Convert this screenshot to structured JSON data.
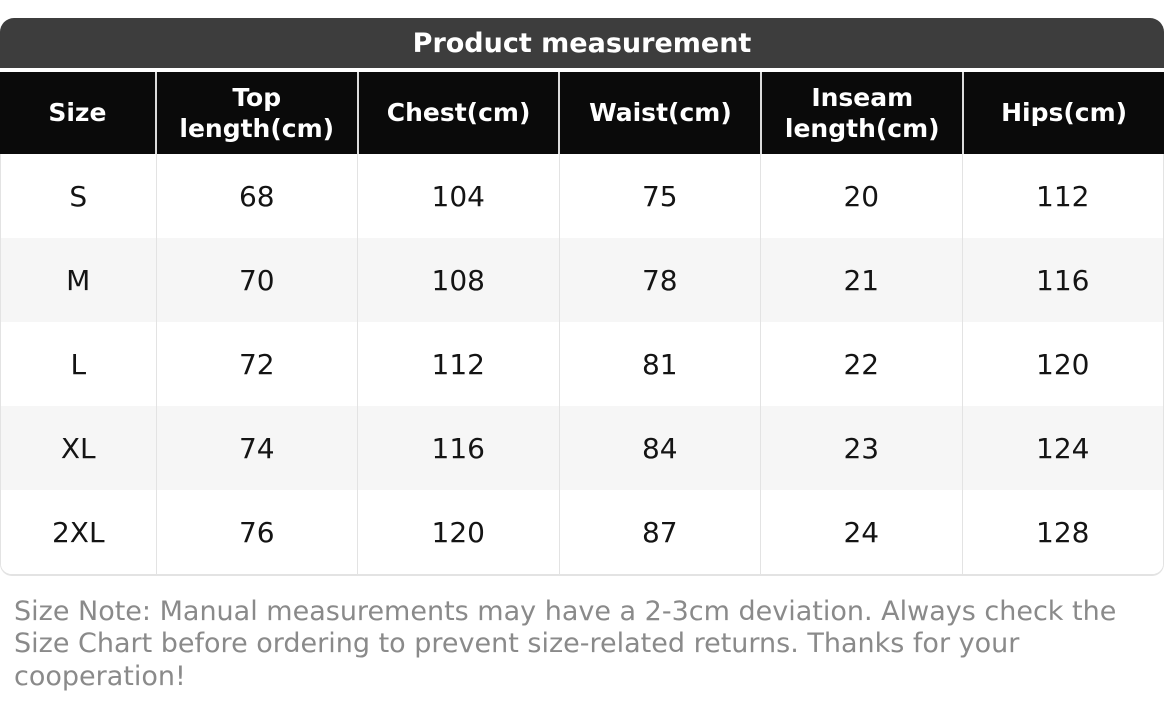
{
  "title_bar": {
    "label": "Product measurement",
    "background": "#3d3d3d",
    "text_color": "#ffffff"
  },
  "size_table": {
    "header_labels": [
      "Size",
      "Top\nlength(cm)",
      "Chest(cm)",
      "Waist(cm)",
      "Inseam\nlength(cm)",
      "Hips(cm)"
    ],
    "header_background": "#0a0a0a",
    "header_text_color": "#ffffff",
    "stripe_color": "#f6f6f6",
    "grid_line_color": "#e3e3e3",
    "body_text_color": "#141414"
  },
  "chart_data": {
    "type": "table",
    "title": "Product measurement",
    "columns": [
      "Size",
      "Top length(cm)",
      "Chest(cm)",
      "Waist(cm)",
      "Inseam length(cm)",
      "Hips(cm)"
    ],
    "rows": [
      [
        "S",
        68,
        104,
        75,
        20,
        112
      ],
      [
        "M",
        70,
        108,
        78,
        21,
        116
      ],
      [
        "L",
        72,
        112,
        81,
        22,
        120
      ],
      [
        "XL",
        74,
        116,
        84,
        23,
        124
      ],
      [
        "2XL",
        76,
        120,
        87,
        24,
        128
      ]
    ]
  },
  "note": {
    "text": "Size Note: Manual measurements may have a 2-3cm deviation. Always check the Size Chart before ordering to prevent size-related returns. Thanks for your cooperation!",
    "text_color": "#8a8a8a"
  }
}
